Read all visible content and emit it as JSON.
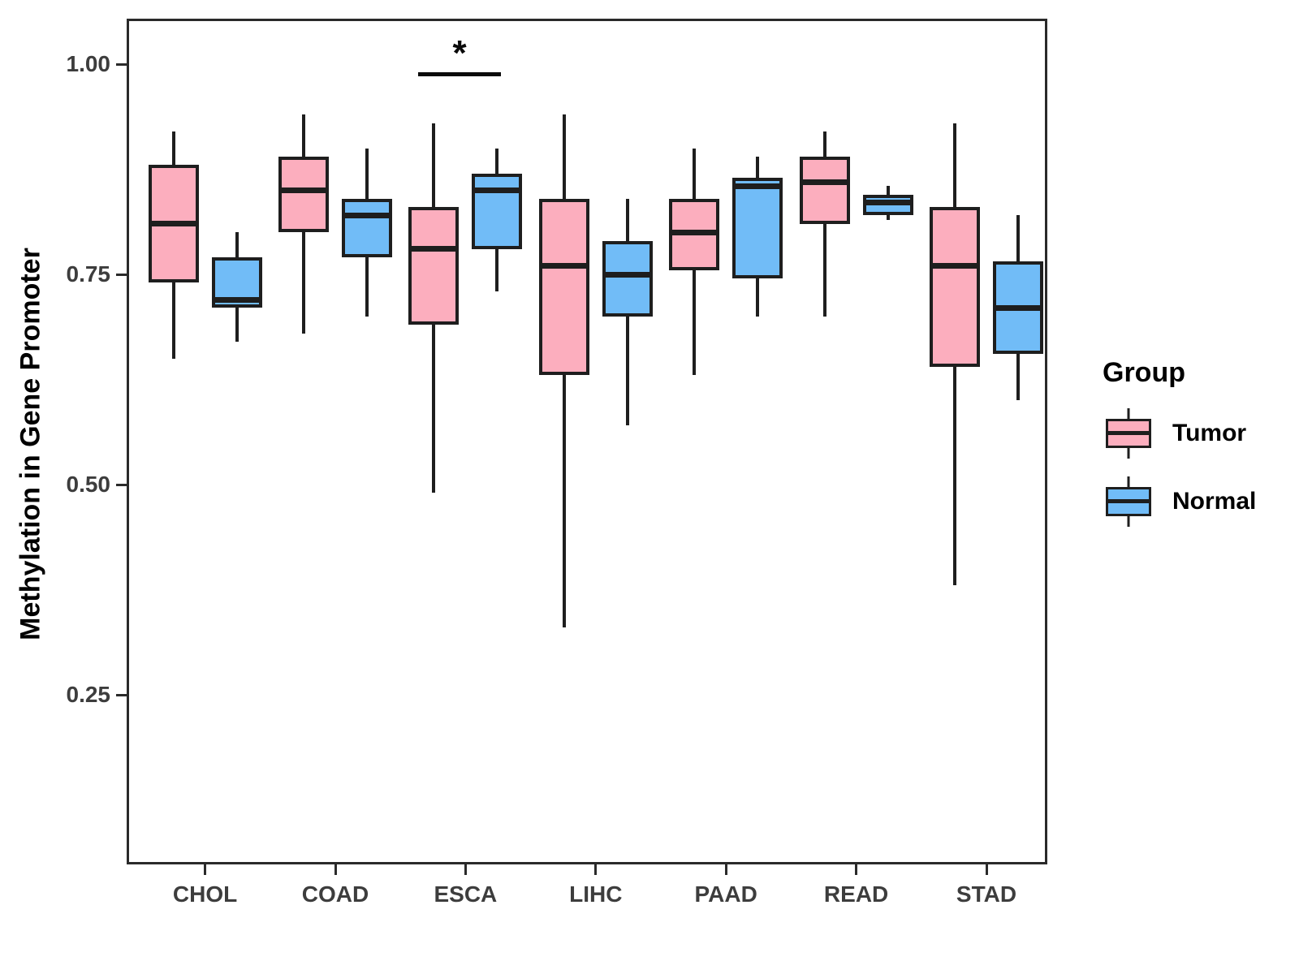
{
  "figure": {
    "y_axis": {
      "title": "Methylation in Gene Promoter",
      "tick_labels": [
        "1.00",
        "0.75",
        "0.50",
        "0.25"
      ],
      "tick_values": [
        1.0,
        0.75,
        0.5,
        0.25
      ]
    },
    "x_axis": {
      "categories": [
        "CHOL",
        "COAD",
        "ESCA",
        "LIHC",
        "PAAD",
        "READ",
        "STAD"
      ]
    },
    "legend": {
      "title": "Group",
      "items": [
        {
          "label": "Tumor",
          "color": "#FCAEBE"
        },
        {
          "label": "Normal",
          "color": "#71BCF7"
        }
      ]
    },
    "significance": {
      "category": "ESCA",
      "label": "*"
    }
  },
  "chart_data": {
    "type": "boxplot",
    "title": "",
    "xlabel": "",
    "ylabel": "Methylation in Gene Promoter",
    "ylim": [
      0.05,
      1.05
    ],
    "yticks": [
      0.25,
      0.5,
      0.75,
      1.0
    ],
    "grid": "off",
    "legend_position": "right",
    "categories": [
      "CHOL",
      "COAD",
      "ESCA",
      "LIHC",
      "PAAD",
      "READ",
      "STAD"
    ],
    "series": [
      {
        "name": "Tumor",
        "color": "#FCAEBE",
        "boxes": [
          {
            "min": 0.65,
            "q1": 0.74,
            "median": 0.81,
            "q3": 0.88,
            "max": 0.92
          },
          {
            "min": 0.68,
            "q1": 0.8,
            "median": 0.85,
            "q3": 0.89,
            "max": 0.94
          },
          {
            "min": 0.49,
            "q1": 0.69,
            "median": 0.78,
            "q3": 0.83,
            "max": 0.93
          },
          {
            "min": 0.33,
            "q1": 0.63,
            "median": 0.76,
            "q3": 0.84,
            "max": 0.94
          },
          {
            "min": 0.63,
            "q1": 0.755,
            "median": 0.8,
            "q3": 0.84,
            "max": 0.9
          },
          {
            "min": 0.7,
            "q1": 0.81,
            "median": 0.86,
            "q3": 0.89,
            "max": 0.92
          },
          {
            "min": 0.38,
            "q1": 0.64,
            "median": 0.76,
            "q3": 0.83,
            "max": 0.93
          }
        ]
      },
      {
        "name": "Normal",
        "color": "#71BCF7",
        "boxes": [
          {
            "min": 0.67,
            "q1": 0.71,
            "median": 0.72,
            "q3": 0.77,
            "max": 0.8
          },
          {
            "min": 0.7,
            "q1": 0.77,
            "median": 0.82,
            "q3": 0.84,
            "max": 0.9
          },
          {
            "min": 0.73,
            "q1": 0.78,
            "median": 0.85,
            "q3": 0.87,
            "max": 0.9
          },
          {
            "min": 0.57,
            "q1": 0.7,
            "median": 0.75,
            "q3": 0.79,
            "max": 0.84
          },
          {
            "min": 0.7,
            "q1": 0.745,
            "median": 0.855,
            "q3": 0.865,
            "max": 0.89
          },
          {
            "min": 0.815,
            "q1": 0.82,
            "median": 0.835,
            "q3": 0.845,
            "max": 0.855
          },
          {
            "min": 0.6,
            "q1": 0.655,
            "median": 0.71,
            "q3": 0.765,
            "max": 0.82
          }
        ]
      }
    ],
    "annotations": [
      {
        "type": "significance",
        "category": "ESCA",
        "text": "*"
      }
    ]
  }
}
